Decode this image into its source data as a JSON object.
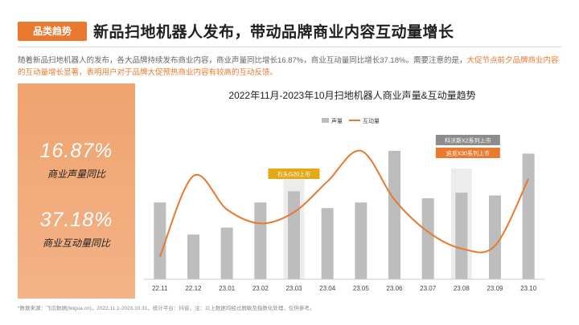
{
  "header": {
    "tag": "品类趋势",
    "title": "新品扫地机器人发布，带动品牌商业内容互动量增长"
  },
  "intro": {
    "text_part1": "随着新品扫地机器人的发布，各大品牌持续发布商业内容，商业声量同比增长16.87%，商业互动量同比增长37.18%。需要注意的是，",
    "text_highlight": "大促节点前夕品牌商业内容的互动量增长显著，表明用户对于品牌大促预热商业内容有较高的互动反馈。"
  },
  "kpis": [
    {
      "value": "16.87%",
      "label": "商业声量同比"
    },
    {
      "value": "37.18%",
      "label": "商业互动量同比"
    }
  ],
  "colors": {
    "accent": "#e8792f",
    "bar": "#bdbdbd",
    "line": "#e8792f",
    "highlight_band": "#ececec",
    "annotation_gold": "#e6a817",
    "annotation_gray": "#8c8c8c"
  },
  "chart_data": {
    "type": "bar",
    "title": "2022年11月-2023年10月扫地机器人商业声量&互动量趋势",
    "legend_position": "top-right",
    "grid": false,
    "categories": [
      "22.11",
      "22.12",
      "23.01",
      "23.02",
      "23.03",
      "23.04",
      "23.05",
      "23.06",
      "23.07",
      "23.08",
      "23.09",
      "23.10"
    ],
    "series": [
      {
        "name": "声量",
        "kind": "bar",
        "values": [
          55,
          32,
          37,
          55,
          63,
          51,
          55,
          92,
          58,
          62,
          60,
          90
        ]
      },
      {
        "name": "互动量",
        "kind": "line",
        "values": [
          16,
          74,
          50,
          40,
          48,
          70,
          92,
          57,
          34,
          22,
          24,
          72
        ]
      }
    ],
    "highlighted_categories": [
      "23.03",
      "23.08"
    ],
    "annotations": [
      {
        "category": "23.03",
        "text": "石头G20上市",
        "style": "gold"
      },
      {
        "category": "23.08",
        "text": "科沃斯X2系列上市",
        "style": "gray"
      },
      {
        "category": "23.08",
        "text": "追觅X30系列上市",
        "style": "accent"
      }
    ]
  },
  "footnote": "*数据来源：飞瓜数据(feigua.cn)，2022.11.1-2023.10.31，统计平台：抖音，注：以上数据均经过脱敏及指数化处理，仅供参考。"
}
